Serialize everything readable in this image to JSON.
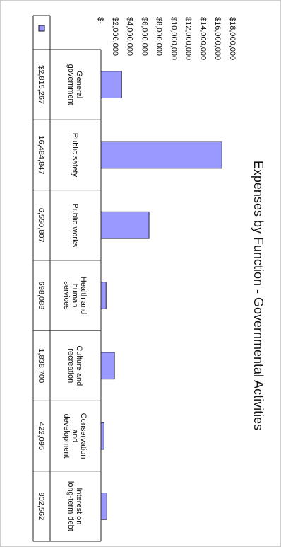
{
  "chart_data": {
    "type": "bar",
    "title": "Expenses by Function - Governmental Activities",
    "categories": [
      [
        "General",
        "government"
      ],
      [
        "Public safety"
      ],
      [
        "Public works"
      ],
      [
        "Health and",
        "human",
        "services"
      ],
      [
        "Culture and",
        "recreation"
      ],
      [
        "Conservation",
        "and",
        "development"
      ],
      [
        "Interest on",
        "long-term debt"
      ]
    ],
    "values": [
      2815267,
      16484847,
      6550807,
      698088,
      1838700,
      422095,
      802562
    ],
    "value_labels": [
      "$2,815,267",
      "16,484,847",
      "6,550,807",
      "698,088",
      "1,838,700",
      "422,095",
      "802,562"
    ],
    "y_ticks": [
      0,
      2000000,
      4000000,
      6000000,
      8000000,
      10000000,
      12000000,
      14000000,
      16000000,
      18000000
    ],
    "y_tick_labels": [
      "$-",
      "$2,000,000",
      "$4,000,000",
      "$6,000,000",
      "$8,000,000",
      "$10,000,000",
      "$12,000,000",
      "$14,000,000",
      "$16,000,000",
      "$18,000,000"
    ],
    "ylim": [
      0,
      18000000
    ],
    "xlabel": "",
    "ylabel": "",
    "grid": false,
    "legend": "none",
    "bar_color": "#9999ff",
    "bar_edge": "#222244",
    "orientation": "rotated 90deg clockwise on page"
  }
}
